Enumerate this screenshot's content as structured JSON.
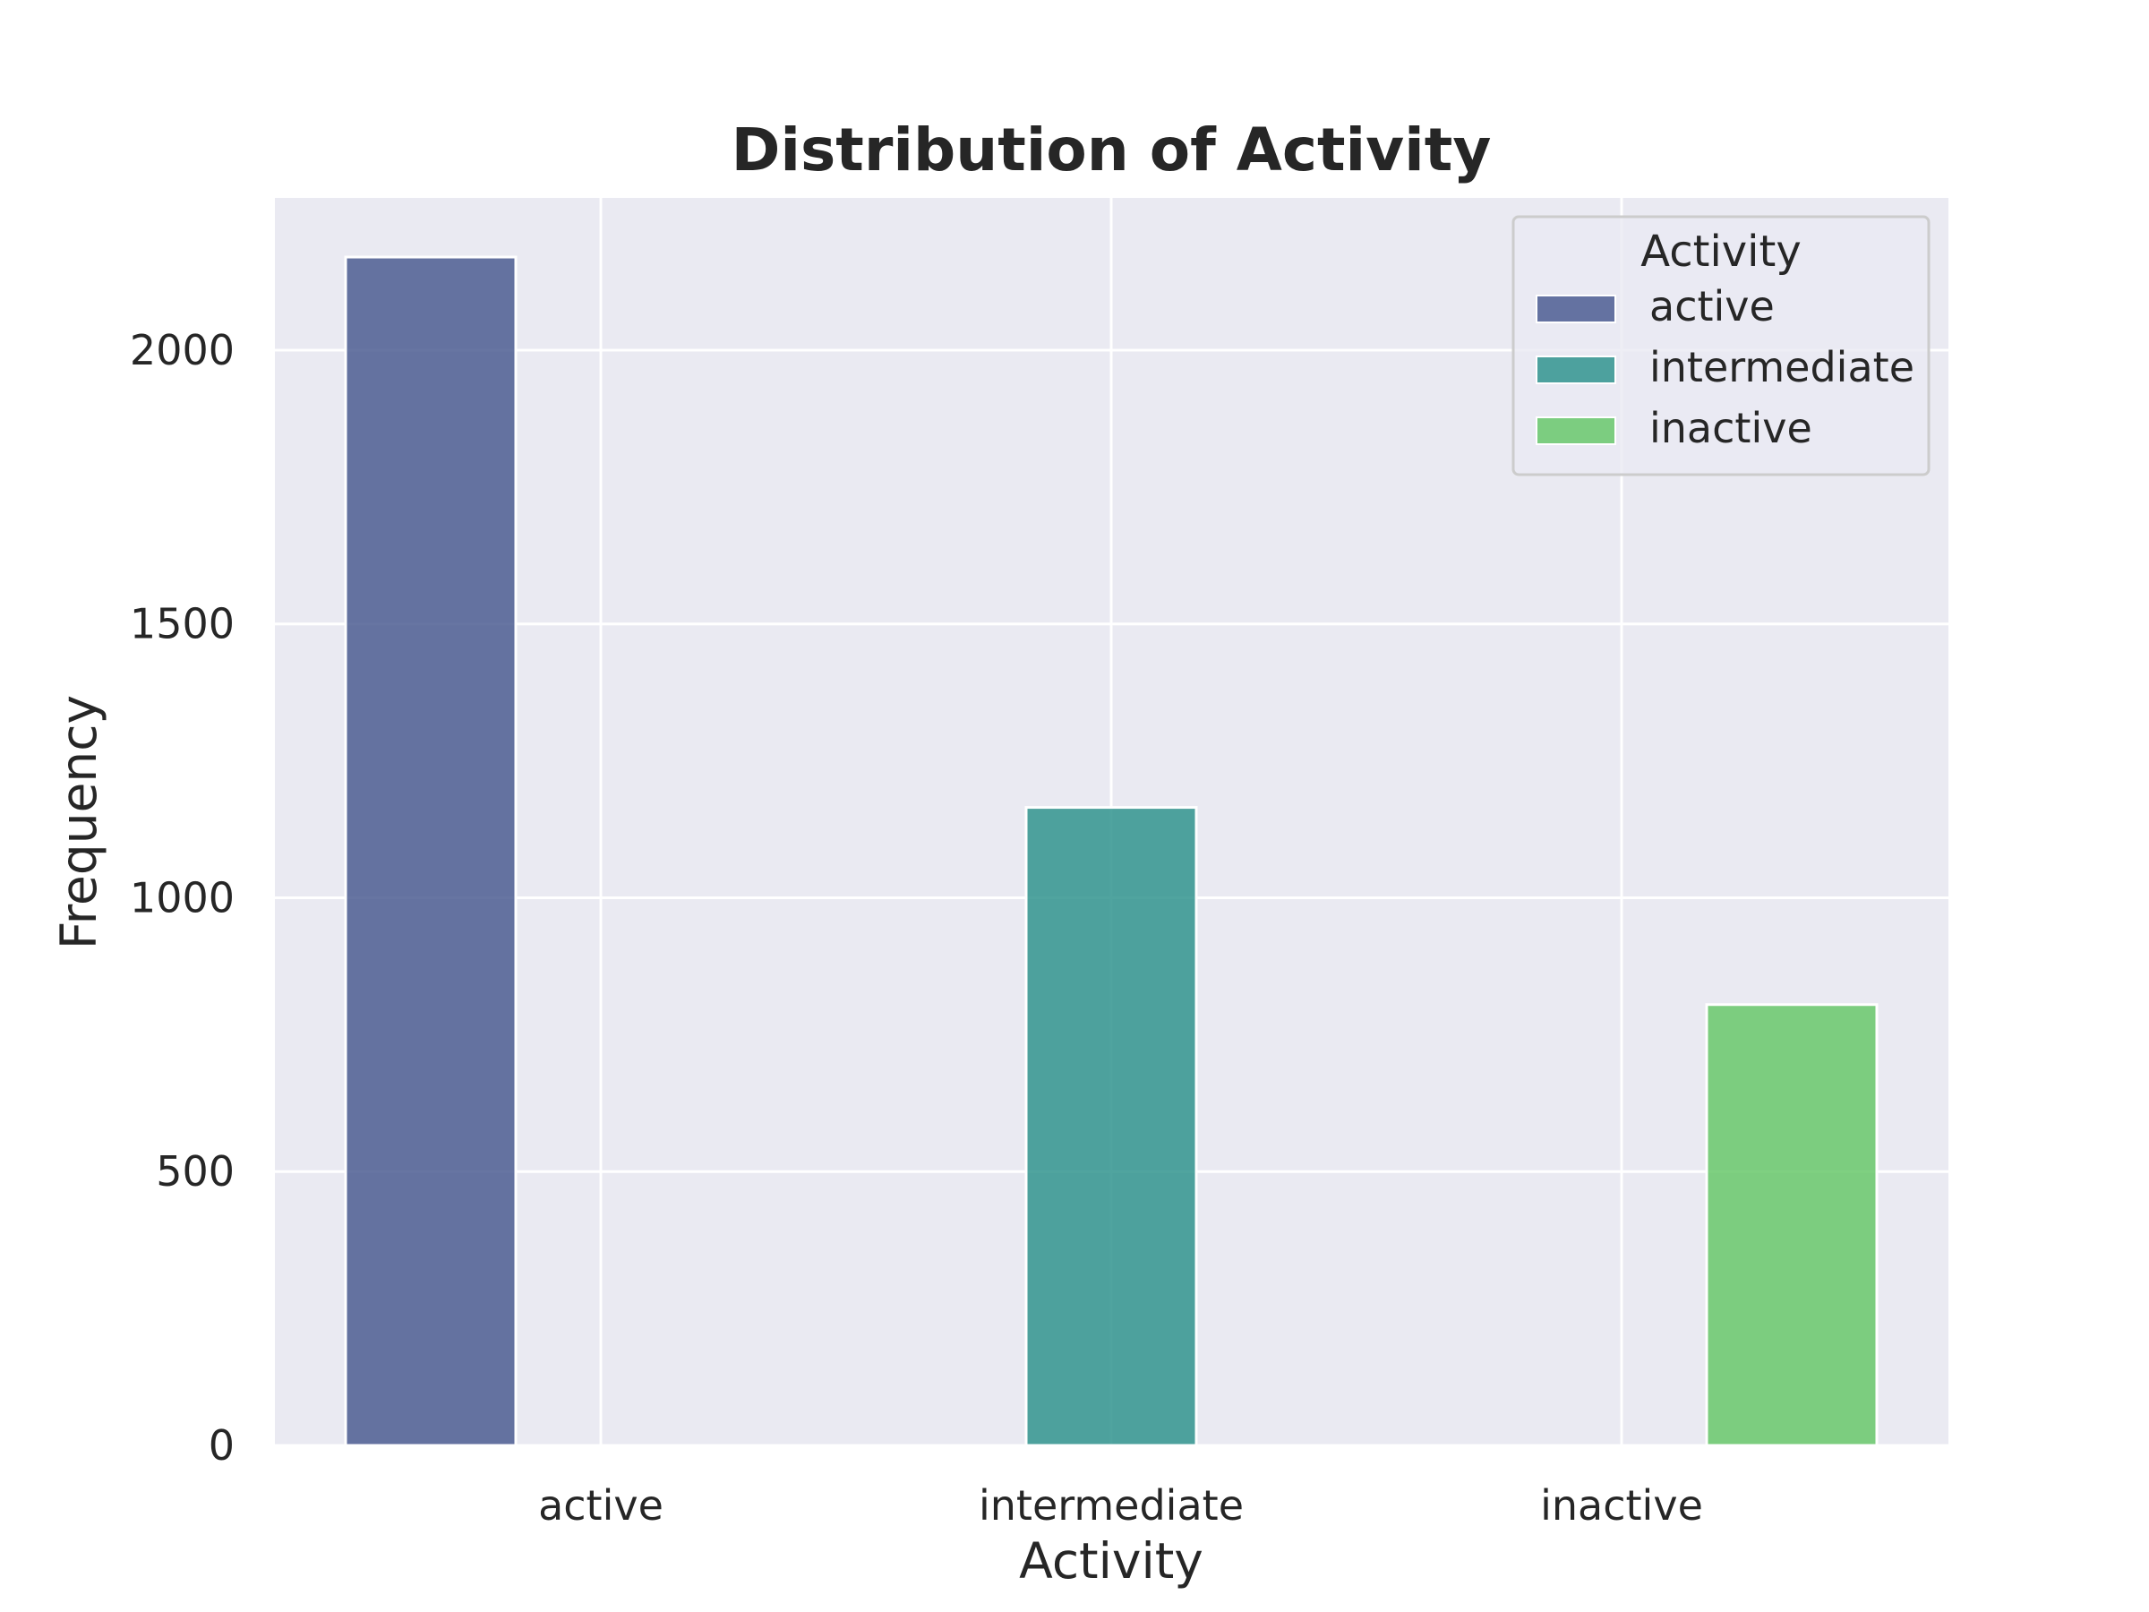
{
  "chart_data": {
    "type": "bar",
    "title": "Distribution of Activity",
    "xlabel": "Activity",
    "ylabel": "Frequency",
    "categories": [
      "active",
      "intermediate",
      "inactive"
    ],
    "series": [
      {
        "name": "active",
        "values": [
          2170,
          0,
          0
        ],
        "color": "#4c5d92"
      },
      {
        "name": "intermediate",
        "values": [
          0,
          1165,
          0
        ],
        "color": "#31948e"
      },
      {
        "name": "inactive",
        "values": [
          0,
          0,
          805
        ],
        "color": "#69c86b"
      }
    ],
    "ylim": [
      0,
      2278
    ],
    "yticks": [
      0,
      500,
      1000,
      1500,
      2000
    ],
    "grid": true,
    "legend": {
      "title": "Activity",
      "position": "top-right"
    },
    "background": "#eaeaf2"
  }
}
